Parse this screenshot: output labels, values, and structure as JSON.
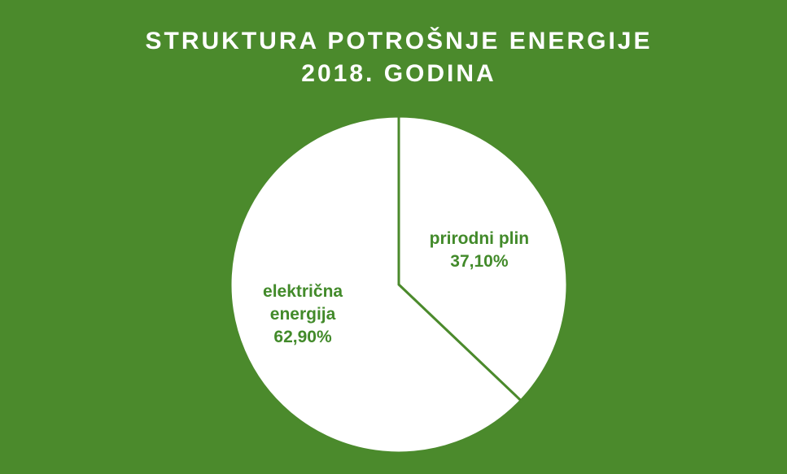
{
  "chart_data": {
    "type": "pie",
    "title": "STRUKTURA POTROŠNJE ENERGIJE",
    "subtitle": "2018. GODINA",
    "categories": [
      "prirodni plin",
      "električna energija"
    ],
    "values": [
      37.1,
      62.9
    ],
    "value_labels": [
      "37,10%",
      "62,90%"
    ],
    "colors": [
      "#ffffff",
      "#ffffff"
    ],
    "background": "#4b8a2c",
    "label_color": "#428a2a",
    "edge_color": "#4b8a2c"
  }
}
